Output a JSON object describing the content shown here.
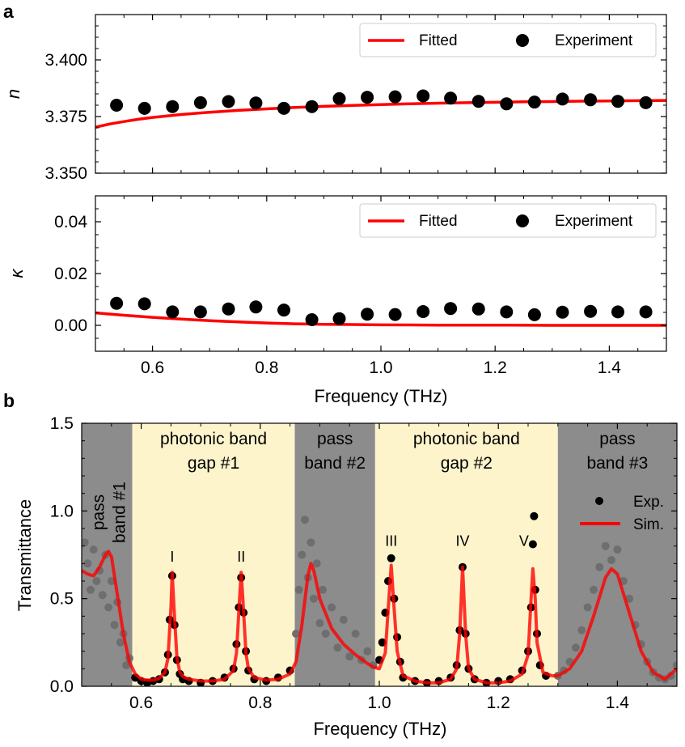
{
  "chart_data": [
    {
      "panel": "a",
      "type": "line",
      "title": "",
      "xlabel": "",
      "ylabel": "n",
      "xlim": [
        0.5,
        1.5
      ],
      "ylim": [
        3.35,
        3.42
      ],
      "yticks": [
        3.35,
        3.375,
        3.4
      ],
      "ytick_labels": [
        "3.350",
        "3.375",
        "3.400"
      ],
      "legend": [
        "Fitted",
        "Experiment"
      ],
      "legend_position": "top-right",
      "series": [
        {
          "name": "Experiment",
          "x": [
            0.537,
            0.586,
            0.635,
            0.684,
            0.733,
            0.781,
            0.83,
            0.879,
            0.927,
            0.976,
            1.025,
            1.074,
            1.122,
            1.171,
            1.22,
            1.269,
            1.318,
            1.367,
            1.415,
            1.464
          ],
          "y": [
            3.38,
            3.3786,
            3.3794,
            3.3811,
            3.3816,
            3.381,
            3.3786,
            3.3794,
            3.3829,
            3.3835,
            3.3837,
            3.3841,
            3.3831,
            3.3817,
            3.3806,
            3.3814,
            3.3827,
            3.3824,
            3.3817,
            3.3811
          ]
        },
        {
          "name": "Fitted",
          "x": [
            0.5,
            0.525,
            0.55,
            0.575,
            0.6,
            0.65,
            0.7,
            0.75,
            0.8,
            0.85,
            0.9,
            0.95,
            1.0,
            1.05,
            1.1,
            1.15,
            1.2,
            1.25,
            1.3,
            1.35,
            1.4,
            1.45,
            1.5
          ],
          "y": [
            3.3703,
            3.3717,
            3.3728,
            3.3738,
            3.3746,
            3.3759,
            3.3769,
            3.3777,
            3.3784,
            3.379,
            3.3795,
            3.3799,
            3.3803,
            3.3806,
            3.3809,
            3.3811,
            3.3813,
            3.3815,
            3.3816,
            3.3818,
            3.3819,
            3.382,
            3.3821
          ]
        }
      ]
    },
    {
      "panel": "a",
      "type": "line",
      "title": "",
      "xlabel": "Frequency (THz)",
      "ylabel": "κ",
      "xlim": [
        0.5,
        1.5
      ],
      "ylim": [
        -0.01,
        0.05
      ],
      "yticks": [
        0.0,
        0.02,
        0.04
      ],
      "ytick_labels": [
        "0.00",
        "0.02",
        "0.04"
      ],
      "xticks": [
        0.6,
        0.8,
        1.0,
        1.2,
        1.4
      ],
      "xtick_labels": [
        "0.6",
        "0.8",
        "1.0",
        "1.2",
        "1.4"
      ],
      "legend": [
        "Fitted",
        "Experiment"
      ],
      "legend_position": "top-right",
      "series": [
        {
          "name": "Experiment",
          "x": [
            0.537,
            0.586,
            0.635,
            0.684,
            0.733,
            0.781,
            0.83,
            0.879,
            0.927,
            0.976,
            1.025,
            1.074,
            1.122,
            1.171,
            1.22,
            1.269,
            1.318,
            1.367,
            1.415,
            1.464
          ],
          "y": [
            0.0085,
            0.0083,
            0.0052,
            0.0052,
            0.0063,
            0.0071,
            0.0059,
            0.0022,
            0.0026,
            0.0043,
            0.0042,
            0.0053,
            0.0065,
            0.0063,
            0.0052,
            0.0041,
            0.0051,
            0.0054,
            0.0052,
            0.0052
          ]
        },
        {
          "name": "Fitted",
          "x": [
            0.5,
            0.55,
            0.6,
            0.65,
            0.7,
            0.75,
            0.8,
            0.85,
            0.9,
            0.95,
            1.0,
            1.1,
            1.2,
            1.3,
            1.4,
            1.5
          ],
          "y": [
            0.0048,
            0.0039,
            0.0031,
            0.0024,
            0.0018,
            0.0013,
            0.0009,
            0.0006,
            0.0004,
            0.0003,
            0.0002,
            0.0001,
            0.0001,
            0.0,
            0.0,
            0.0
          ]
        }
      ]
    },
    {
      "panel": "b",
      "type": "line",
      "title": "",
      "xlabel": "Frequency (THz)",
      "ylabel": "Transmittance",
      "xlim": [
        0.5,
        1.5
      ],
      "ylim": [
        0.0,
        1.5
      ],
      "yticks": [
        0.0,
        0.5,
        1.0,
        1.5
      ],
      "ytick_labels": [
        "0.0",
        "0.5",
        "1.0",
        "1.5"
      ],
      "xticks": [
        0.6,
        0.8,
        1.0,
        1.2,
        1.4
      ],
      "xtick_labels": [
        "0.6",
        "0.8",
        "1.0",
        "1.2",
        "1.4"
      ],
      "legend": [
        "Exp.",
        "Sim."
      ],
      "legend_position": "right",
      "regions": [
        {
          "label_lines": [
            "pass",
            "band #1"
          ],
          "x0": 0.5,
          "x1": 0.585,
          "kind": "pass",
          "color": "#8c8c8c",
          "label_rotated": true
        },
        {
          "label_lines": [
            "photonic band",
            "gap #1"
          ],
          "x0": 0.585,
          "x1": 0.858,
          "kind": "gap",
          "color": "#fdf4cc",
          "label_rotated": false
        },
        {
          "label_lines": [
            "pass",
            "band #2"
          ],
          "x0": 0.858,
          "x1": 0.993,
          "kind": "pass",
          "color": "#8c8c8c",
          "label_rotated": false
        },
        {
          "label_lines": [
            "photonic band",
            "gap #2"
          ],
          "x0": 0.993,
          "x1": 1.3,
          "kind": "gap",
          "color": "#fdf4cc",
          "label_rotated": false
        },
        {
          "label_lines": [
            "pass",
            "band #3"
          ],
          "x0": 1.3,
          "x1": 1.5,
          "kind": "pass",
          "color": "#8c8c8c",
          "label_rotated": false
        }
      ],
      "annotations": [
        {
          "text": "I",
          "x": 0.652,
          "y": 0.71
        },
        {
          "text": "II",
          "x": 0.768,
          "y": 0.71
        },
        {
          "text": "III",
          "x": 1.02,
          "y": 0.8
        },
        {
          "text": "IV",
          "x": 1.14,
          "y": 0.8
        },
        {
          "text": "V",
          "x": 1.243,
          "y": 0.8
        }
      ],
      "series": [
        {
          "name": "Sim.",
          "x": [
            0.5,
            0.51,
            0.52,
            0.53,
            0.54,
            0.545,
            0.55,
            0.56,
            0.57,
            0.58,
            0.59,
            0.6,
            0.61,
            0.62,
            0.63,
            0.64,
            0.645,
            0.65,
            0.652,
            0.655,
            0.66,
            0.665,
            0.67,
            0.68,
            0.7,
            0.72,
            0.74,
            0.755,
            0.76,
            0.765,
            0.768,
            0.771,
            0.776,
            0.78,
            0.79,
            0.81,
            0.83,
            0.85,
            0.86,
            0.87,
            0.88,
            0.885,
            0.89,
            0.9,
            0.92,
            0.94,
            0.96,
            0.98,
            0.99,
            1.0,
            1.01,
            1.015,
            1.02,
            1.025,
            1.03,
            1.04,
            1.06,
            1.08,
            1.1,
            1.12,
            1.13,
            1.135,
            1.14,
            1.145,
            1.15,
            1.16,
            1.18,
            1.2,
            1.22,
            1.24,
            1.25,
            1.255,
            1.258,
            1.262,
            1.265,
            1.275,
            1.29,
            1.3,
            1.32,
            1.34,
            1.36,
            1.38,
            1.39,
            1.4,
            1.42,
            1.44,
            1.46,
            1.48,
            1.5
          ],
          "y": [
            0.66,
            0.64,
            0.63,
            0.68,
            0.75,
            0.77,
            0.74,
            0.52,
            0.3,
            0.14,
            0.07,
            0.04,
            0.035,
            0.035,
            0.045,
            0.08,
            0.16,
            0.45,
            0.65,
            0.45,
            0.16,
            0.08,
            0.055,
            0.04,
            0.03,
            0.03,
            0.04,
            0.09,
            0.19,
            0.48,
            0.65,
            0.48,
            0.19,
            0.1,
            0.05,
            0.035,
            0.04,
            0.07,
            0.14,
            0.35,
            0.63,
            0.7,
            0.66,
            0.5,
            0.33,
            0.24,
            0.18,
            0.13,
            0.11,
            0.1,
            0.19,
            0.44,
            0.69,
            0.44,
            0.2,
            0.06,
            0.03,
            0.02,
            0.02,
            0.04,
            0.1,
            0.3,
            0.68,
            0.3,
            0.1,
            0.04,
            0.02,
            0.02,
            0.03,
            0.07,
            0.18,
            0.5,
            0.67,
            0.5,
            0.25,
            0.08,
            0.06,
            0.06,
            0.1,
            0.2,
            0.4,
            0.62,
            0.67,
            0.64,
            0.42,
            0.2,
            0.08,
            0.04,
            0.1
          ]
        },
        {
          "name": "Exp.",
          "x": [
            0.505,
            0.51,
            0.515,
            0.52,
            0.525,
            0.53,
            0.535,
            0.54,
            0.545,
            0.55,
            0.555,
            0.56,
            0.565,
            0.57,
            0.575,
            0.58,
            0.59,
            0.6,
            0.61,
            0.62,
            0.63,
            0.64,
            0.645,
            0.648,
            0.652,
            0.656,
            0.66,
            0.665,
            0.67,
            0.68,
            0.7,
            0.72,
            0.74,
            0.755,
            0.76,
            0.764,
            0.768,
            0.772,
            0.776,
            0.78,
            0.79,
            0.81,
            0.83,
            0.85,
            0.86,
            0.865,
            0.87,
            0.875,
            0.88,
            0.885,
            0.89,
            0.895,
            0.9,
            0.905,
            0.91,
            0.92,
            0.93,
            0.94,
            0.95,
            0.96,
            0.97,
            0.98,
            0.99,
            1.0,
            1.005,
            1.01,
            1.015,
            1.02,
            1.025,
            1.03,
            1.035,
            1.04,
            1.06,
            1.08,
            1.1,
            1.12,
            1.13,
            1.135,
            1.14,
            1.145,
            1.15,
            1.16,
            1.18,
            1.2,
            1.22,
            1.24,
            1.25,
            1.255,
            1.258,
            1.26,
            1.262,
            1.265,
            1.27,
            1.28,
            1.3,
            1.31,
            1.32,
            1.33,
            1.34,
            1.35,
            1.36,
            1.37,
            1.38,
            1.39,
            1.4,
            1.41,
            1.42,
            1.43,
            1.44,
            1.45,
            1.46,
            1.47,
            1.48,
            1.49,
            1.5
          ],
          "y": [
            0.82,
            0.7,
            0.55,
            0.78,
            0.6,
            0.66,
            0.52,
            0.75,
            0.45,
            0.6,
            0.35,
            0.48,
            0.25,
            0.3,
            0.12,
            0.16,
            0.05,
            0.03,
            0.02,
            0.03,
            0.04,
            0.08,
            0.18,
            0.38,
            0.63,
            0.35,
            0.15,
            0.07,
            0.04,
            0.03,
            0.02,
            0.03,
            0.05,
            0.1,
            0.24,
            0.45,
            0.62,
            0.42,
            0.2,
            0.09,
            0.04,
            0.03,
            0.05,
            0.09,
            0.3,
            0.55,
            0.75,
            0.95,
            0.62,
            0.82,
            0.5,
            0.7,
            0.36,
            0.55,
            0.3,
            0.45,
            0.22,
            0.38,
            0.17,
            0.3,
            0.15,
            0.2,
            0.12,
            0.15,
            0.25,
            0.42,
            0.6,
            0.73,
            0.5,
            0.28,
            0.14,
            0.05,
            0.03,
            0.02,
            0.03,
            0.05,
            0.12,
            0.32,
            0.68,
            0.3,
            0.1,
            0.04,
            0.02,
            0.03,
            0.04,
            0.09,
            0.2,
            0.45,
            0.81,
            0.97,
            0.55,
            0.3,
            0.12,
            0.06,
            0.06,
            0.09,
            0.14,
            0.22,
            0.32,
            0.45,
            0.55,
            0.68,
            0.8,
            0.72,
            0.78,
            0.6,
            0.5,
            0.35,
            0.24,
            0.14,
            0.08,
            0.05,
            0.04,
            0.06,
            0.12
          ]
        }
      ]
    }
  ]
}
